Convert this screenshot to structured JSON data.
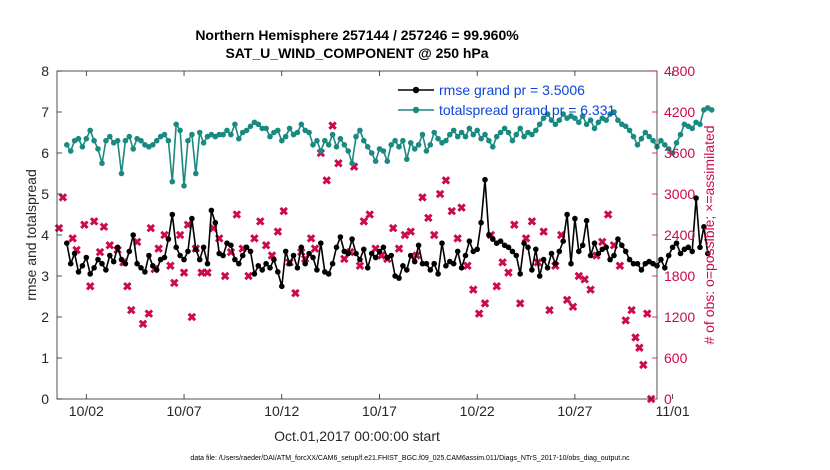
{
  "chart_data": {
    "type": "line",
    "title": "Northern Hemisphere 257144 / 257246 = 99.960%",
    "subtitle": "SAT_U_WIND_COMPONENT @ 250 hPa",
    "xlabel": "Oct.01,2017 00:00:00 start",
    "ylabel_left": "rmse and totalspread",
    "ylabel_right": "# of obs: o=possible; ×=assimilated",
    "footer": "data file: /Users/raeder/DAI/ATM_forcXX/CAM6_setup/f.e21.FHIST_BGC.f09_025.CAM6assim.011/Diags_NTrS_2017-10/obs_diag_output.nc",
    "x_range": [
      0.5,
      31.2
    ],
    "x_ticks": [
      2,
      7,
      12,
      17,
      22,
      27,
      32
    ],
    "x_tick_labels": [
      "10/02",
      "10/07",
      "10/12",
      "10/17",
      "10/22",
      "10/27",
      "11/01"
    ],
    "ylim_left": [
      0,
      8
    ],
    "yticks_left": [
      0,
      1,
      2,
      3,
      4,
      5,
      6,
      7,
      8
    ],
    "ylim_right": [
      0,
      4800
    ],
    "yticks_right": [
      0,
      600,
      1200,
      1800,
      2400,
      3000,
      3600,
      4200,
      4800
    ],
    "grid": false,
    "legend_placement": "top-right",
    "colors": {
      "rmse": "#000000",
      "spread": "#1a8a80",
      "obs": "#cc0a4e",
      "axis_right": "#cc0a4e"
    },
    "series": [
      {
        "name": "rmse grand pr = 3.5006",
        "axis": "left",
        "values": [
          3.8,
          3.3,
          3.55,
          3.1,
          3.25,
          3.45,
          3.05,
          3.2,
          3.4,
          3.3,
          3.15,
          3.5,
          3.35,
          3.7,
          3.4,
          3.3,
          3.6,
          4.0,
          3.3,
          3.2,
          3.1,
          3.5,
          3.25,
          3.15,
          3.4,
          3.45,
          3.9,
          4.5,
          3.7,
          3.5,
          3.4,
          3.6,
          4.4,
          3.65,
          3.4,
          3.7,
          3.3,
          4.6,
          4.3,
          3.55,
          3.5,
          3.8,
          3.75,
          3.4,
          3.3,
          3.5,
          3.7,
          3.6,
          3.05,
          3.25,
          3.15,
          3.3,
          3.2,
          3.4,
          3.1,
          2.75,
          3.6,
          3.3,
          3.5,
          3.2,
          3.7,
          3.3,
          3.55,
          3.45,
          3.15,
          3.8,
          3.1,
          3.05,
          3.3,
          3.7,
          3.95,
          3.6,
          3.55,
          3.9,
          3.55,
          3.4,
          3.65,
          3.2,
          3.55,
          3.45,
          3.6,
          3.7,
          3.45,
          3.5,
          3.0,
          2.95,
          3.25,
          3.15,
          3.5,
          3.35,
          3.75,
          3.3,
          3.3,
          3.15,
          3.3,
          3.05,
          3.8,
          3.25,
          3.35,
          3.3,
          3.6,
          3.2,
          3.5,
          3.85,
          3.6,
          3.65,
          4.3,
          5.35,
          4.0,
          3.9,
          3.8,
          3.85,
          3.75,
          3.7,
          3.6,
          3.5,
          3.05,
          3.8,
          3.7,
          3.15,
          3.65,
          3.0,
          3.4,
          3.2,
          3.55,
          3.3,
          3.6,
          3.85,
          4.5,
          3.3,
          4.4,
          3.6,
          3.75,
          4.35,
          3.5,
          3.8,
          3.55,
          3.65,
          3.7,
          3.4,
          3.5,
          3.9,
          3.75,
          3.6,
          3.4,
          3.3,
          3.3,
          3.15,
          3.3,
          3.35,
          3.3,
          3.25,
          3.4,
          3.2,
          3.5,
          3.7,
          3.8,
          3.55,
          3.65,
          3.7,
          3.6,
          4.9,
          3.7,
          4.2,
          3.55
        ],
        "x_step": 0.2
      },
      {
        "name": "totalspread grand pr = 6.331",
        "axis": "left",
        "values": [
          6.2,
          6.05,
          6.3,
          6.35,
          6.15,
          6.35,
          6.55,
          6.3,
          6.1,
          5.75,
          6.3,
          6.4,
          6.25,
          6.3,
          5.5,
          6.3,
          6.4,
          6.1,
          6.35,
          6.3,
          6.2,
          6.15,
          6.2,
          6.3,
          6.4,
          6.45,
          6.3,
          5.3,
          6.7,
          6.55,
          5.2,
          6.3,
          6.45,
          5.5,
          6.5,
          6.25,
          6.4,
          6.45,
          6.4,
          6.45,
          6.45,
          6.55,
          6.45,
          6.7,
          6.35,
          6.5,
          6.55,
          6.65,
          6.75,
          6.7,
          6.6,
          6.6,
          6.4,
          6.5,
          6.55,
          6.3,
          6.4,
          6.6,
          6.45,
          6.5,
          6.7,
          6.55,
          6.5,
          6.2,
          6.3,
          6.05,
          6.3,
          6.2,
          6.45,
          6.15,
          6.35,
          6.2,
          6.05,
          5.75,
          6.4,
          6.55,
          6.3,
          6.15,
          6.0,
          5.8,
          6.1,
          6.05,
          5.8,
          6.2,
          6.3,
          6.15,
          6.3,
          5.85,
          6.25,
          6.1,
          6.2,
          6.45,
          6.05,
          6.2,
          6.5,
          6.35,
          6.25,
          6.3,
          6.45,
          6.55,
          6.4,
          6.5,
          6.4,
          6.6,
          6.45,
          6.55,
          6.35,
          6.45,
          6.3,
          6.15,
          6.4,
          6.5,
          6.6,
          6.5,
          6.3,
          6.45,
          6.6,
          6.4,
          6.5,
          6.45,
          6.55,
          6.7,
          6.85,
          6.95,
          6.8,
          6.7,
          6.8,
          6.95,
          6.85,
          6.9,
          6.85,
          6.75,
          6.9,
          6.7,
          6.8,
          6.6,
          6.75,
          6.85,
          6.8,
          6.95,
          7.0,
          6.8,
          6.7,
          6.65,
          6.55,
          6.4,
          6.2,
          6.35,
          6.5,
          6.4,
          6.3,
          6.15,
          6.3,
          6.2,
          6.1,
          6.0,
          6.25,
          6.45,
          6.7,
          6.65,
          6.6,
          6.75,
          6.7,
          7.05,
          7.1,
          7.05
        ],
        "x_step": 0.2
      }
    ],
    "obs_assimilated": {
      "axis": "right",
      "x": [
        0.6,
        0.8,
        1.3,
        1.5,
        1.9,
        2.2,
        2.4,
        2.7,
        2.9,
        3.2,
        3.6,
        3.9,
        4.1,
        4.3,
        4.6,
        4.9,
        5.2,
        5.3,
        5.5,
        5.7,
        6.0,
        6.3,
        6.5,
        6.8,
        7.0,
        7.2,
        7.4,
        7.6,
        7.9,
        8.2,
        8.5,
        8.8,
        9.1,
        9.4,
        9.7,
        10.0,
        10.3,
        10.6,
        10.9,
        11.2,
        11.5,
        11.8,
        12.1,
        12.4,
        12.7,
        13.0,
        13.2,
        13.5,
        13.7,
        14.0,
        14.3,
        14.6,
        14.9,
        15.2,
        15.5,
        15.7,
        16.0,
        16.2,
        16.5,
        16.8,
        17.1,
        17.4,
        17.7,
        18.0,
        18.3,
        18.6,
        18.9,
        19.2,
        19.5,
        19.8,
        20.1,
        20.4,
        20.7,
        21.0,
        21.2,
        21.5,
        21.8,
        22.1,
        22.4,
        22.7,
        23.0,
        23.3,
        23.6,
        23.9,
        24.2,
        24.5,
        24.8,
        25.1,
        25.4,
        25.7,
        26.0,
        26.3,
        26.6,
        26.9,
        27.2,
        27.5,
        27.8,
        28.1,
        28.4,
        28.7,
        29.0,
        29.3,
        29.6,
        29.9,
        30.1,
        30.3,
        30.5,
        30.7,
        30.9
      ],
      "y": [
        2500,
        2950,
        2350,
        2180,
        2550,
        1650,
        2600,
        2150,
        2520,
        2250,
        2180,
        2000,
        1650,
        1300,
        2300,
        1100,
        1250,
        2500,
        1900,
        2200,
        2400,
        1950,
        1700,
        2400,
        1850,
        2550,
        1200,
        2200,
        1850,
        1850,
        2500,
        2350,
        1800,
        2150,
        2700,
        2200,
        1800,
        2350,
        2600,
        2250,
        2100,
        2450,
        2750,
        2000,
        1550,
        2150,
        2050,
        2350,
        2200,
        3600,
        3200,
        4000,
        3450,
        2050,
        2150,
        3400,
        1950,
        2600,
        2700,
        2200,
        2100,
        2050,
        2500,
        2200,
        2400,
        2450,
        2100,
        2950,
        2650,
        2400,
        3000,
        3200,
        2750,
        2350,
        2800,
        1950,
        1600,
        1250,
        1400,
        2400,
        1650,
        2000,
        1850,
        2550,
        1400,
        2350,
        2600,
        2000,
        2450,
        1300,
        1950,
        2400,
        1450,
        1350,
        1800,
        1750,
        1600,
        2100,
        2300,
        2700,
        2250,
        1950,
        1150,
        1300,
        900,
        750,
        500,
        1250,
        0
      ]
    }
  }
}
